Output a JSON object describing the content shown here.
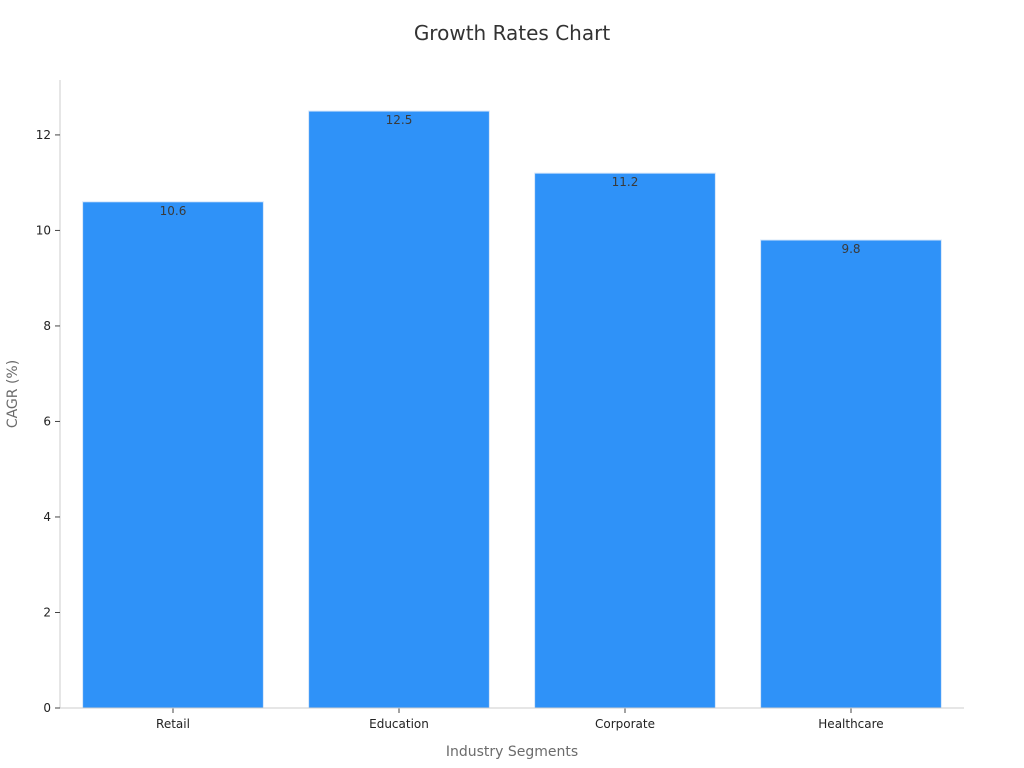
{
  "chart_data": {
    "type": "bar",
    "title": "Growth Rates Chart",
    "xlabel": "Industry Segments",
    "ylabel": "CAGR (%)",
    "categories": [
      "Retail",
      "Education",
      "Corporate",
      "Healthcare"
    ],
    "values": [
      10.6,
      12.5,
      11.2,
      9.8
    ],
    "value_labels": [
      "10.6",
      "12.5",
      "11.2",
      "9.8"
    ],
    "yticks": [
      "0",
      "2",
      "4",
      "6",
      "8",
      "10",
      "12"
    ],
    "ylim": [
      0,
      13.15
    ],
    "grid": false,
    "legend": "none",
    "colors": {
      "bar": "#2f92f8",
      "bar_edge": "#d9e8fa",
      "axis": "#cccccc"
    }
  }
}
